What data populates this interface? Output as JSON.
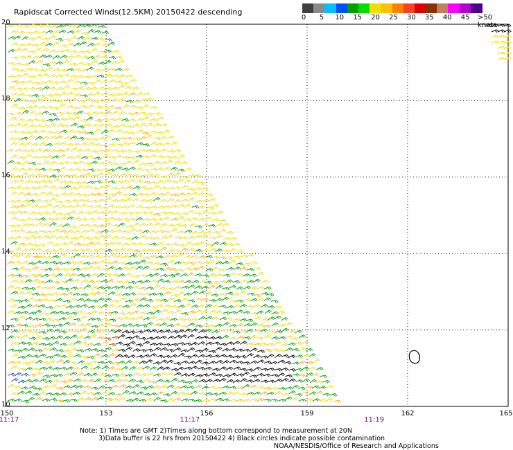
{
  "title": "Rapidscat Corrected Winds(12.5KM) 20150422 descending",
  "map": {
    "lon_range": [
      150,
      165
    ],
    "lat_range": [
      10,
      20
    ],
    "lat_labels": [
      "20",
      "18",
      "16",
      "14",
      "12",
      "10"
    ],
    "lon_labels": [
      "150",
      "153",
      "156",
      "159",
      "162",
      "165"
    ],
    "time_labels": [
      "11:17",
      "11:17",
      "11:19"
    ],
    "time_label_lons": [
      150,
      155.5,
      161
    ],
    "grid": "dotted",
    "contamination_marker": {
      "lon": 162.2,
      "lat": 11.3
    }
  },
  "colorbar": {
    "colors": [
      "#404040",
      "#8a8a8a",
      "#00c0ff",
      "#0050ff",
      "#00a000",
      "#00e000",
      "#f0e000",
      "#ffc000",
      "#ff8000",
      "#ff4020",
      "#e00000",
      "#8b3000",
      "#c08060",
      "#ff00ff",
      "#b000d0",
      "#50008a"
    ],
    "tick_labels": [
      "0",
      "5",
      "10",
      "15",
      "20",
      "25",
      "30",
      "35",
      "40",
      "45"
    ],
    "max_label": ">50",
    "unit": "knots"
  },
  "notes": [
    "Note: 1) Times are GMT 2)Times along bottom correspond to measurement at 20N",
    "3)Data buffer is 22 hrs from 20150422 4) Black circles indicate possible contamination",
    "NOAA/NESDIS/Office of Research and Applications"
  ]
}
